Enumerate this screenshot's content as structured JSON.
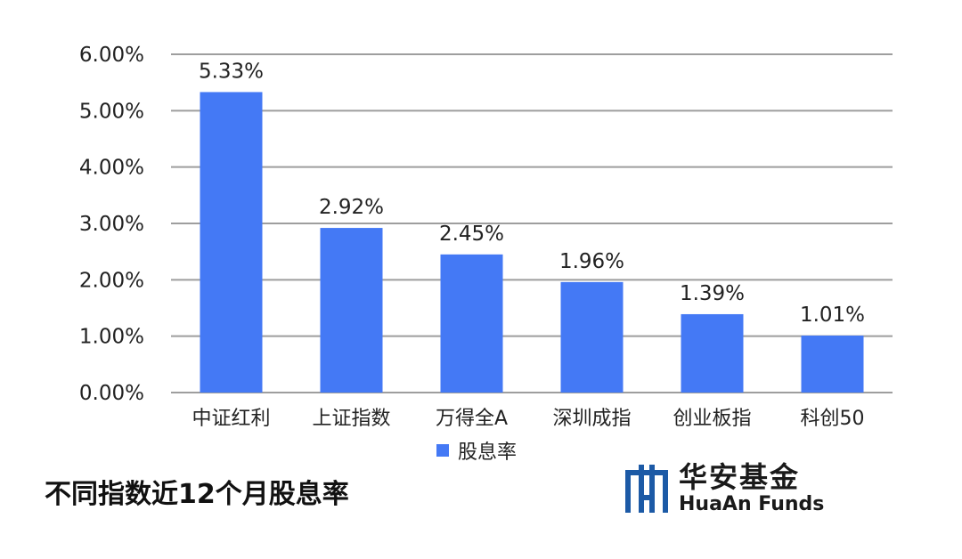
{
  "chart_data": {
    "type": "bar",
    "categories": [
      "中证红利",
      "上证指数",
      "万得全A",
      "深圳成指",
      "创业板指",
      "科创50"
    ],
    "series": [
      {
        "name": "股息率",
        "values": [
          5.33,
          2.92,
          2.45,
          1.96,
          1.39,
          1.01
        ],
        "data_labels": [
          "5.33%",
          "2.92%",
          "2.45%",
          "1.96%",
          "1.39%",
          "1.01%"
        ]
      }
    ],
    "yticks": [
      "0.00%",
      "1.00%",
      "2.00%",
      "3.00%",
      "4.00%",
      "5.00%",
      "6.00%"
    ],
    "ylim": [
      0,
      6
    ],
    "grid": true,
    "legend_position": "bottom",
    "title": "不同指数近12个月股息率"
  },
  "colors": {
    "bar": "#4479F5",
    "grid": "#9e9e9e",
    "text": "#222222"
  },
  "logo": {
    "name_cn": "华安基金",
    "name_en": "HuaAn Funds"
  }
}
